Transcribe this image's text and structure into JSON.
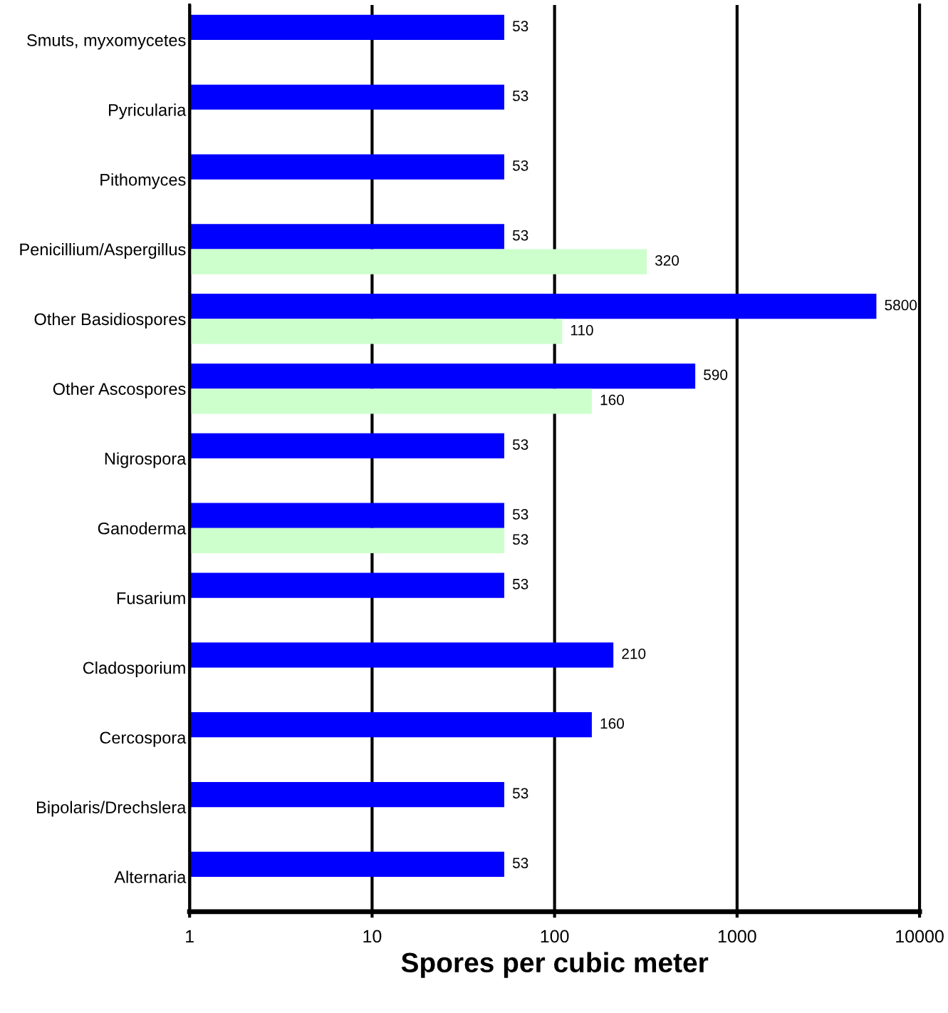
{
  "chart_data": {
    "type": "bar",
    "orientation": "horizontal",
    "xlabel": "Spores per cubic meter",
    "categories": [
      "Smuts, myxomycetes",
      "Pyricularia",
      "Pithomyces",
      "Penicillium/Aspergillus",
      "Other Basidiospores",
      "Other Ascospores",
      "Nigrospora",
      "Ganoderma",
      "Fusarium",
      "Cladosporium",
      "Cercospora",
      "Bipolaris/Drechslera",
      "Alternaria"
    ],
    "series": [
      {
        "color": "#0000ff",
        "values": [
          53,
          53,
          53,
          53,
          5800,
          590,
          53,
          53,
          53,
          210,
          160,
          53,
          53
        ]
      },
      {
        "color": "#ccffcc",
        "values": [
          null,
          null,
          null,
          320,
          110,
          160,
          null,
          53,
          null,
          null,
          null,
          null,
          null
        ]
      }
    ],
    "log": "x",
    "xlim": [
      1,
      10000
    ],
    "xticks": [
      1,
      10,
      100,
      1000,
      10000
    ],
    "grid": "x",
    "legend": false,
    "data_labels": true
  }
}
